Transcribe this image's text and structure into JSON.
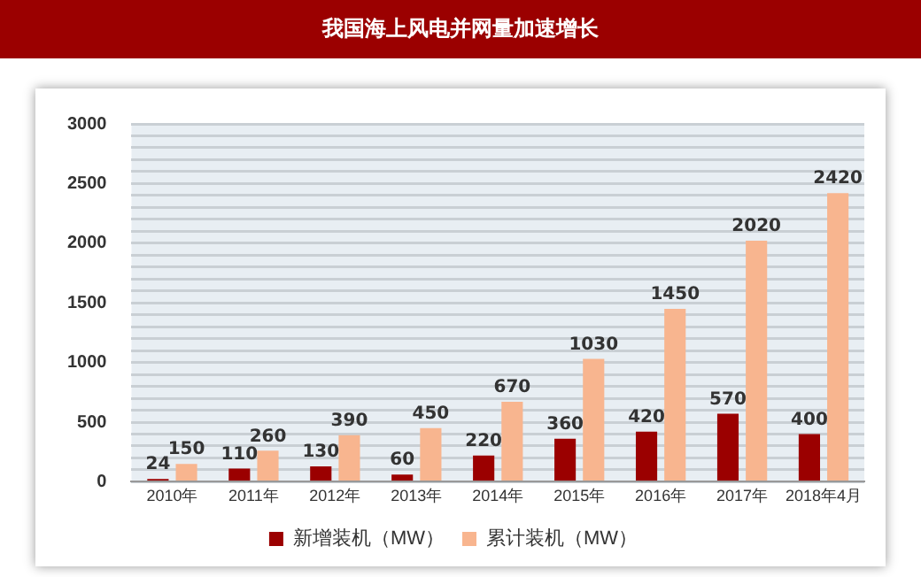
{
  "chart_data": {
    "type": "bar",
    "title": "我国海上风电并网量加速增长",
    "categories": [
      "2010年",
      "2011年",
      "2012年",
      "2013年",
      "2014年",
      "2015年",
      "2016年",
      "2017年",
      "2018年4月"
    ],
    "series": [
      {
        "name": "新增装机（MW）",
        "color": "#9b0000",
        "values": [
          24,
          110,
          130,
          60,
          220,
          360,
          420,
          570,
          400
        ]
      },
      {
        "name": "累计装机（MW）",
        "color": "#f8b58f",
        "values": [
          150,
          260,
          390,
          450,
          670,
          1030,
          1450,
          2020,
          2420
        ]
      }
    ],
    "ylim": [
      0,
      3000
    ],
    "yticks": [
      0,
      {
        "value": 100,
        "label": null
      },
      {
        "value": 200,
        "label": null
      },
      {
        "value": 300,
        "label": null
      },
      {
        "value": 400,
        "label": null
      },
      500,
      {
        "value": 600,
        "label": null
      },
      {
        "value": 700,
        "label": null
      },
      {
        "value": 800,
        "label": null
      },
      {
        "value": 900,
        "label": null
      },
      1000,
      {
        "value": 1100,
        "label": null
      },
      {
        "value": 1200,
        "label": null
      },
      {
        "value": 1300,
        "label": null
      },
      {
        "value": 1400,
        "label": null
      },
      1500,
      {
        "value": 1600,
        "label": null
      },
      {
        "value": 1700,
        "label": null
      },
      {
        "value": 1800,
        "label": null
      },
      {
        "value": 1900,
        "label": null
      },
      2000,
      {
        "value": 2100,
        "label": null
      },
      {
        "value": 2200,
        "label": null
      },
      {
        "value": 2300,
        "label": null
      },
      {
        "value": 2400,
        "label": null
      },
      2500,
      {
        "value": 2600,
        "label": null
      },
      {
        "value": 2700,
        "label": null
      },
      {
        "value": 2800,
        "label": null
      },
      {
        "value": 2900,
        "label": null
      },
      3000
    ],
    "grid": "y",
    "legend": "bottom",
    "data_labels": true
  }
}
